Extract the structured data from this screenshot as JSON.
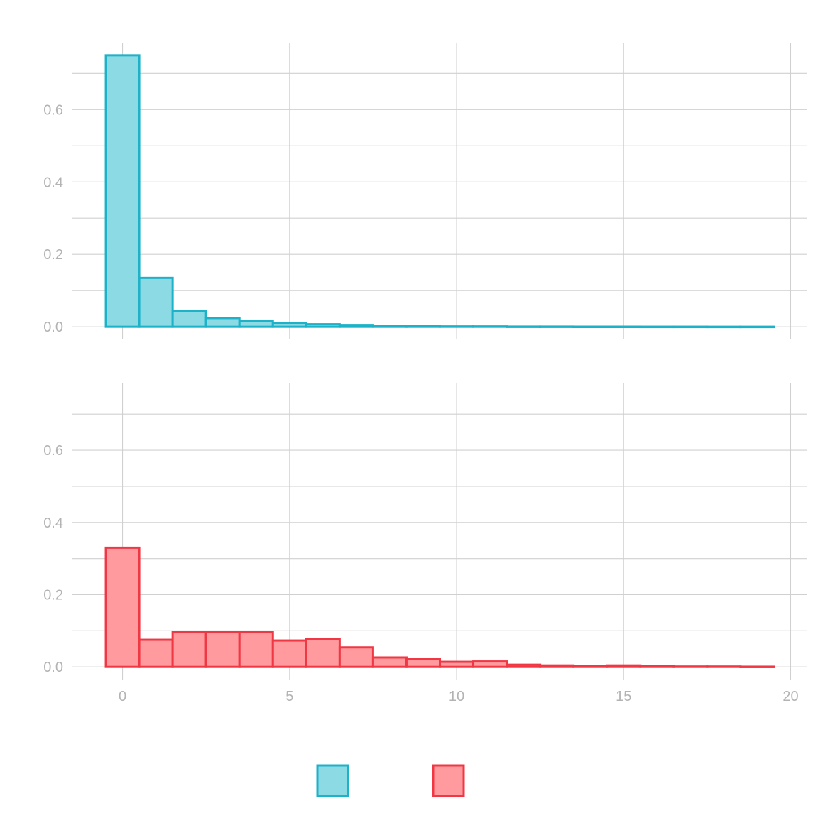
{
  "chart_data": [
    {
      "type": "bar",
      "panel": "top",
      "x": [
        0,
        1,
        2,
        3,
        4,
        5,
        6,
        7,
        8,
        9,
        10,
        11,
        12,
        13,
        14,
        15,
        16,
        17,
        18,
        19
      ],
      "values": [
        0.75,
        0.135,
        0.043,
        0.024,
        0.016,
        0.011,
        0.007,
        0.005,
        0.003,
        0.002,
        0.001,
        0.001,
        0.0005,
        0.0005,
        0.0003,
        0.0003,
        0.0002,
        0.0002,
        0.0001,
        0.0001
      ],
      "fill": "#8bdae4",
      "stroke": "#1eb2c8",
      "xlim": [
        -1.5,
        20.5
      ],
      "ylim": [
        -0.035,
        0.785
      ],
      "xticks": [
        0,
        5,
        10,
        15,
        20
      ],
      "yticks": [
        0.0,
        0.2,
        0.4,
        0.6
      ],
      "ytick_labels": [
        "0.0",
        "0.2",
        "0.4",
        "0.6"
      ],
      "show_x_tick_labels": false,
      "grid": true
    },
    {
      "type": "bar",
      "panel": "bottom",
      "x": [
        0,
        1,
        2,
        3,
        4,
        5,
        6,
        7,
        8,
        9,
        10,
        11,
        12,
        13,
        14,
        15,
        16,
        17,
        18,
        19
      ],
      "values": [
        0.33,
        0.075,
        0.097,
        0.096,
        0.096,
        0.073,
        0.078,
        0.054,
        0.026,
        0.023,
        0.014,
        0.015,
        0.006,
        0.004,
        0.003,
        0.004,
        0.002,
        0.001,
        0.001,
        0.0005
      ],
      "fill": "#ff9b9e",
      "stroke": "#f03845",
      "xlim": [
        -1.5,
        20.5
      ],
      "ylim": [
        -0.035,
        0.785
      ],
      "xticks": [
        0,
        5,
        10,
        15,
        20
      ],
      "xtick_labels": [
        "0",
        "5",
        "10",
        "15",
        "20"
      ],
      "yticks": [
        0.0,
        0.2,
        0.4,
        0.6
      ],
      "ytick_labels": [
        "0.0",
        "0.2",
        "0.4",
        "0.6"
      ],
      "show_x_tick_labels": true,
      "grid": true
    }
  ],
  "legend": {
    "placement": "bottom",
    "keys": [
      {
        "fill": "#8bdae4",
        "stroke": "#1eb2c8"
      },
      {
        "fill": "#ff9b9e",
        "stroke": "#f03845"
      }
    ]
  }
}
